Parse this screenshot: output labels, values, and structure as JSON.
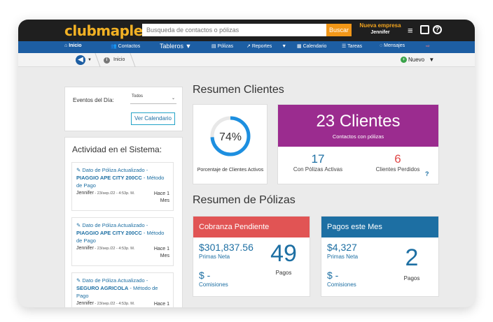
{
  "header": {
    "logo": "clubmaple",
    "search_placeholder": "Busqueda de contactos o pólizas",
    "search_button": "Buscar",
    "company": "Nueva empresa",
    "user": "Jennifer",
    "menu_icon": "hamburger-icon",
    "notes_icon": "notes-icon",
    "help_icon": "help-icon"
  },
  "nav": [
    {
      "icon": "home-icon",
      "label": "Inicio",
      "active": true
    },
    {
      "icon": "contacts-icon",
      "label": "Contactos"
    },
    {
      "label": "Tableros ▼"
    },
    {
      "icon": "policies-icon",
      "label": "Pólizas"
    },
    {
      "icon": "reports-icon",
      "label": "Reportes"
    },
    {
      "icon": "calendar-icon",
      "label": "Calendario"
    },
    {
      "icon": "tasks-icon",
      "label": "Tareas"
    },
    {
      "icon": "messages-icon",
      "label": "Mensajes"
    },
    {
      "icon": "logout-icon",
      "label": "⇨"
    }
  ],
  "breadcrumb": {
    "current": "Inicio",
    "new_button": "Nuevo"
  },
  "events": {
    "label": "Eventos del Día:",
    "filter_value": "Todos",
    "calendar_button": "Ver Calendario"
  },
  "activity": {
    "title": "Actividad en el Sistema:",
    "items": [
      {
        "prefix": "Dato de Póliza Actualizado - ",
        "strong": "PIAGGIO APE CITY 200CC",
        "suffix": " - Método de Pago",
        "user": "Jennifer",
        "date": " - 23/sep./22 - 4:53p. M.",
        "ago1": "Hace 1",
        "ago2": "Mes"
      },
      {
        "prefix": "Dato de Póliza Actualizado - ",
        "strong": "PIAGGIO APE CITY 200CC",
        "suffix": " - Método de Pago",
        "user": "Jennifer",
        "date": " - 23/sep./22 - 4:53p. M.",
        "ago1": "Hace 1",
        "ago2": "Mes"
      },
      {
        "prefix": "Dato de Póliza Actualizado - ",
        "strong": "SEGURO AGRICOLA",
        "suffix": " - Método de Pago",
        "user": "Jennifer",
        "date": " - 23/sep./22 - 4:53p. M.",
        "ago1": "Hace 1",
        "ago2": ""
      }
    ]
  },
  "clients": {
    "title": "Resumen Clientes",
    "active_pct": "74%",
    "active_fraction": 0.74,
    "active_label": "Porcentaje de Clientes Activos",
    "total": "23 Clientes",
    "total_sub": "Contactos con pólizas",
    "with_policies": "17",
    "with_policies_label": "Con Pólizas Activas",
    "lost": "6",
    "lost_label": "Clientes Perdidos",
    "help": "?",
    "colors": {
      "accent": "#1d8fe0",
      "purple": "#9b2c8f",
      "lost": "#e04848"
    }
  },
  "policies": {
    "title": "Resumen de Pólizas",
    "pending": {
      "title": "Cobranza Pendiente",
      "amount": "$301,837.56",
      "amount_label": "Primas Neta",
      "commission": "$ -",
      "commission_label": "Comisiones",
      "count": "49",
      "count_label": "Pagos",
      "color": "#e15454"
    },
    "month": {
      "title": "Pagos este Mes",
      "amount": "$4,327",
      "amount_label": "Primas Neta",
      "commission": "$ -",
      "commission_label": "Comisiones",
      "count": "2",
      "count_label": "Pagos",
      "color": "#1d6fa3"
    }
  }
}
